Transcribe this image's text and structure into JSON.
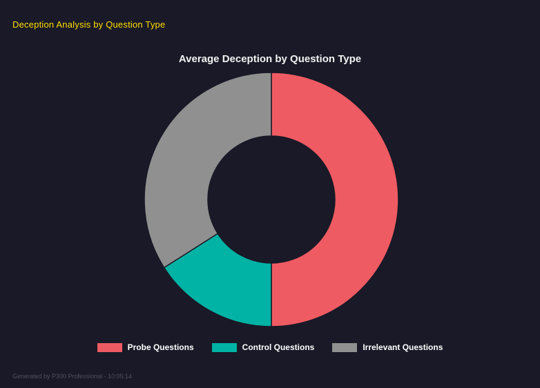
{
  "page": {
    "background": "#191927",
    "header": "Deception Analysis by Question Type",
    "header_color": "#ffdf00",
    "footer": "Generated by P300 Professional - 10:05:14"
  },
  "chart_data": {
    "type": "pie",
    "variant": "doughnut",
    "title": "Average Deception by Question Type",
    "categories": [
      "Probe Questions",
      "Control Questions",
      "Irrelevant Questions"
    ],
    "values_percent": [
      50,
      16,
      34
    ],
    "colors": [
      "#ef5b62",
      "#00b3a4",
      "#909090"
    ],
    "legend_position": "bottom",
    "inner_radius_ratio": 0.5,
    "start_angle_deg": 0,
    "direction": "clockwise"
  }
}
